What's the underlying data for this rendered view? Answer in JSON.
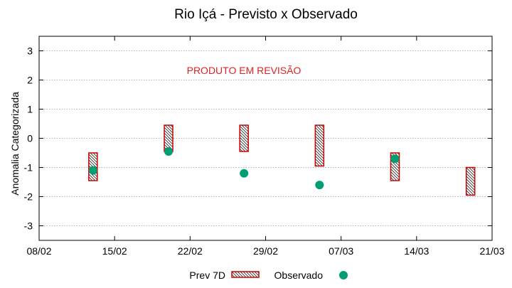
{
  "chart_data": {
    "type": "scatter",
    "title": "Rio Içá - Previsto x Observado",
    "annotation": "PRODUTO EM REVISÃO",
    "ylabel": "Anomalia Categorizada",
    "xlabel": "",
    "xlim": [
      "08/02",
      "21/03"
    ],
    "ylim": [
      -3.5,
      3.5
    ],
    "x_ticks": [
      "08/02",
      "15/02",
      "22/02",
      "29/02",
      "07/03",
      "14/03",
      "21/03"
    ],
    "y_ticks": [
      3,
      2,
      1,
      0,
      -1,
      -2,
      -3
    ],
    "grid": true,
    "legend_position": "bottom",
    "series": [
      {
        "name": "Prev 7D",
        "kind": "range-box",
        "color": "#cc0000",
        "points": [
          {
            "x": "13/02",
            "low": -1.45,
            "high": -0.5
          },
          {
            "x": "20/02",
            "low": -0.45,
            "high": 0.45
          },
          {
            "x": "27/02",
            "low": -0.45,
            "high": 0.45
          },
          {
            "x": "05/03",
            "low": -0.95,
            "high": 0.45
          },
          {
            "x": "12/03",
            "low": -1.45,
            "high": -0.5
          },
          {
            "x": "19/03",
            "low": -1.95,
            "high": -1.0
          }
        ]
      },
      {
        "name": "Observado",
        "kind": "point",
        "color": "#009e73",
        "points": [
          {
            "x": "13/02",
            "y": -1.1
          },
          {
            "x": "20/02",
            "y": -0.45
          },
          {
            "x": "27/02",
            "y": -1.2
          },
          {
            "x": "05/03",
            "y": -1.6
          },
          {
            "x": "12/03",
            "y": -0.7
          }
        ]
      }
    ]
  }
}
